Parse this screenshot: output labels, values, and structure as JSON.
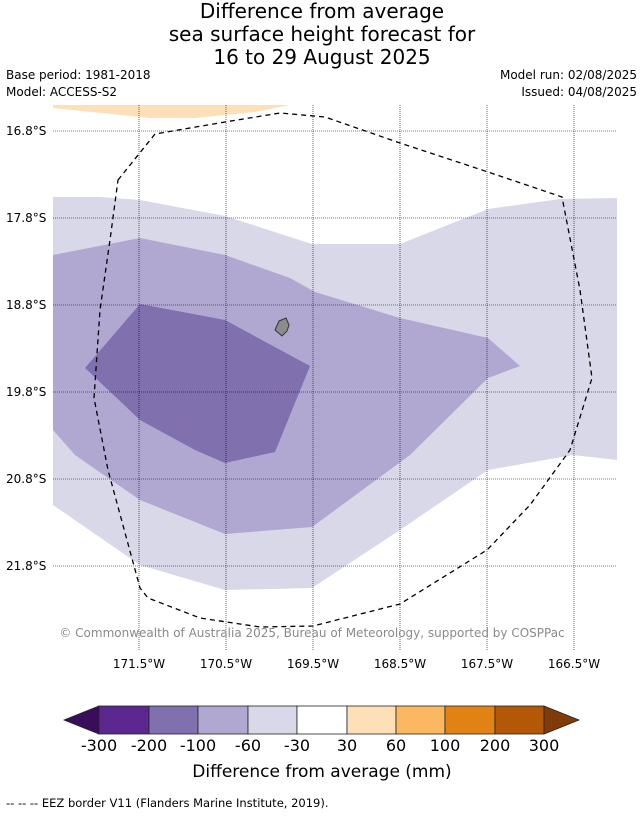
{
  "title": {
    "line1": "Difference from average",
    "line2": "sea surface height forecast for",
    "line3": "16 to 29 August 2025"
  },
  "meta": {
    "base_period": "Base period: 1981-2018",
    "model": "Model: ACCESS-S2",
    "model_run": "Model run: 02/08/2025",
    "issued": "Issued: 04/08/2025"
  },
  "map": {
    "latitude_labels": [
      "16.8°S",
      "17.8°S",
      "18.8°S",
      "19.8°S",
      "20.8°S",
      "21.8°S"
    ],
    "longitude_labels": [
      "171.5°W",
      "170.5°W",
      "169.5°W",
      "168.5°W",
      "167.5°W",
      "166.5°W"
    ],
    "copyright": "© Commonwealth of Australia 2025, Bureau of Meteorology, supported by COSPPac",
    "colors": {
      "land": "#8c8c8c",
      "band_-30_-60": "#d8d8e8",
      "band_-60_-100": "#b0a8d0",
      "band_-100_-200": "#8070ae",
      "band_30_60": "#fde0b7"
    }
  },
  "colorbar": {
    "tick_labels": [
      "-300",
      "-200",
      "-100",
      "-60",
      "-30",
      "30",
      "60",
      "100",
      "200",
      "300"
    ],
    "colors": [
      "#3a0d5c",
      "#5c2890",
      "#8070ae",
      "#b0a8d0",
      "#d8d8e8",
      "#ffffff",
      "#fde0b7",
      "#fbb860",
      "#e08214",
      "#b35806",
      "#7f3b08"
    ],
    "label": "Difference from average (mm)"
  },
  "footer": {
    "legend_symbol": "-- -- --",
    "legend_text": "EEZ border V11 (Flanders Marine Institute, 2019)."
  }
}
